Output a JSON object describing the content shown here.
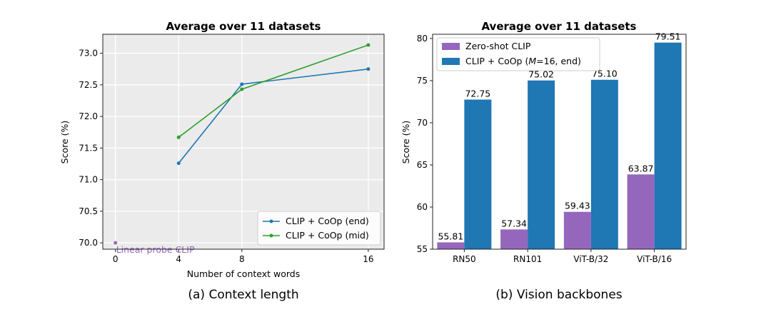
{
  "chart_data": [
    {
      "type": "line",
      "title": "Average over 11 datasets",
      "caption": "(a) Context length",
      "xlabel": "Number of context words",
      "ylabel": "Score (%)",
      "xlim": [
        -0.8,
        17
      ],
      "ylim": [
        69.9,
        73.3
      ],
      "xticks": [
        0,
        4,
        8,
        16
      ],
      "yticks": [
        70.0,
        70.5,
        71.0,
        71.5,
        72.0,
        72.5,
        73.0
      ],
      "ytick_labels": [
        "70.0",
        "70.5",
        "71.0",
        "71.5",
        "72.0",
        "72.5",
        "73.0"
      ],
      "grid": true,
      "legend_location": "bottom-right",
      "series": [
        {
          "name": "CLIP + CoOp (end)",
          "color": "#1f77b4",
          "x": [
            4,
            8,
            16
          ],
          "y": [
            71.26,
            72.51,
            72.75
          ]
        },
        {
          "name": "CLIP + CoOp (mid)",
          "color": "#2ca02c",
          "x": [
            4,
            8,
            16
          ],
          "y": [
            71.67,
            72.43,
            73.13
          ]
        }
      ],
      "points": [
        {
          "name": "Linear probe CLIP",
          "x": 0,
          "y": 70.0,
          "color": "#9467bd"
        }
      ]
    },
    {
      "type": "bar",
      "title": "Average over 11 datasets",
      "caption": "(b) Vision backbones",
      "xlabel": "",
      "ylabel": "Score (%)",
      "ylim": [
        55,
        80.5
      ],
      "yticks": [
        55,
        60,
        65,
        70,
        75,
        80
      ],
      "categories": [
        "RN50",
        "RN101",
        "ViT-B/32",
        "ViT-B/16"
      ],
      "legend_location": "top-left",
      "series": [
        {
          "name": "Zero-shot CLIP",
          "legend_parts": [
            "Zero-shot CLIP"
          ],
          "color": "#9467bd",
          "values": [
            55.81,
            57.34,
            59.43,
            63.87
          ],
          "value_labels": [
            "55.81",
            "57.34",
            "59.43",
            "63.87"
          ]
        },
        {
          "name": "CLIP + CoOp (M=16, end)",
          "legend_parts": [
            "CLIP + CoOp (",
            "M",
            "=16, end)"
          ],
          "color": "#1f77b4",
          "values": [
            72.75,
            75.02,
            75.1,
            79.51
          ],
          "value_labels": [
            "72.75",
            "75.02",
            "75.10",
            "79.51"
          ]
        }
      ]
    }
  ]
}
